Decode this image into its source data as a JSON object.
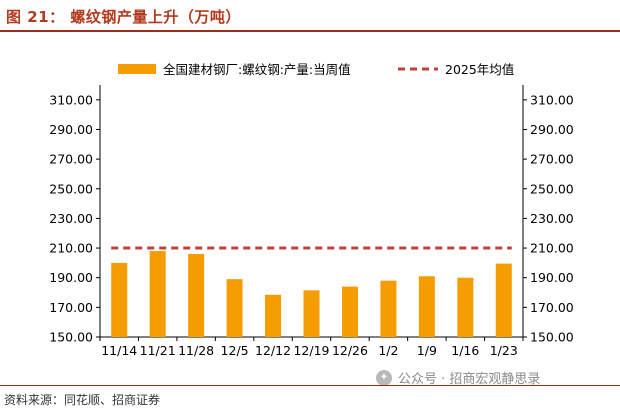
{
  "header": {
    "title": "图 21： 螺纹钢产量上升（万吨）"
  },
  "footer": {
    "source": "资料来源：同花顺、招商证券",
    "watermark": "公众号 · 招商宏观静思录"
  },
  "colors": {
    "bar": "#f59c00",
    "line": "#c0413a",
    "title": "#b23a1e"
  },
  "chart_data": {
    "type": "bar",
    "categories": [
      "11/14",
      "11/21",
      "11/28",
      "12/5",
      "12/12",
      "12/19",
      "12/26",
      "1/2",
      "1/9",
      "1/16",
      "1/23"
    ],
    "series": [
      {
        "name": "全国建材钢厂:螺纹钢:产量:当周值",
        "type": "bar",
        "values": [
          200.0,
          208.0,
          206.0,
          189.0,
          178.5,
          181.5,
          184.0,
          188.0,
          191.0,
          190.0,
          199.5
        ]
      },
      {
        "name": "2025年均值",
        "type": "dashed-line",
        "values": [
          210.0,
          210.0,
          210.0,
          210.0,
          210.0,
          210.0,
          210.0,
          210.0,
          210.0,
          210.0,
          210.0
        ]
      }
    ],
    "yticks": [
      "150.00",
      "170.00",
      "190.00",
      "210.00",
      "230.00",
      "250.00",
      "270.00",
      "290.00",
      "310.00"
    ],
    "ylim": [
      150,
      320
    ],
    "legend_position": "top"
  }
}
